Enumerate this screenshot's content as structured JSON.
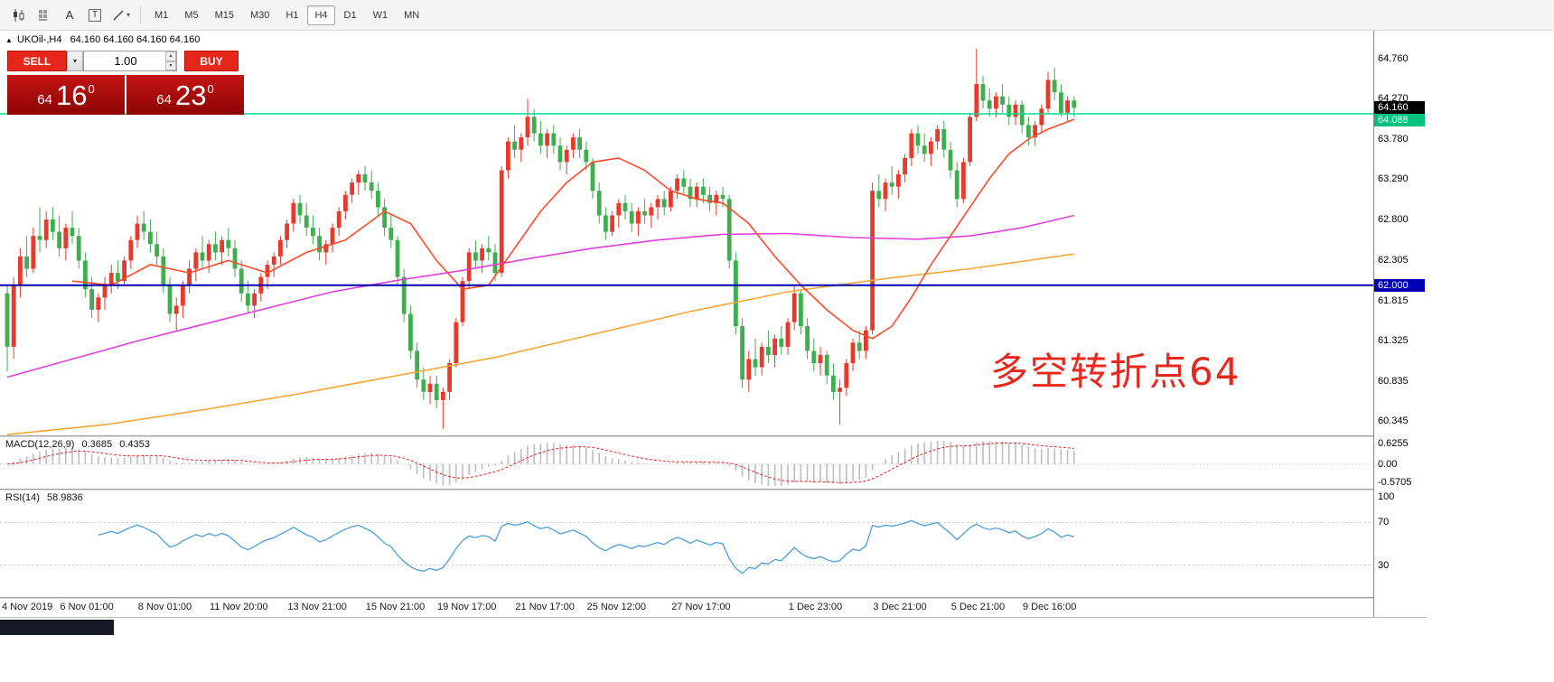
{
  "toolbar": {
    "tools": [
      "A",
      "T"
    ],
    "timeframes": [
      "M1",
      "M5",
      "M15",
      "M30",
      "H1",
      "H4",
      "D1",
      "W1",
      "MN"
    ],
    "active_timeframe": "H4"
  },
  "icons": {
    "symbol_arrow": "▲",
    "dropdown_caret": "▾",
    "spinner_up": "▴",
    "spinner_down": "▾"
  },
  "chart": {
    "symbol": "UKOil-,H4",
    "ohlc": "64.160 64.160 64.160 64.160"
  },
  "trade_panel": {
    "sell_label": "SELL",
    "buy_label": "BUY",
    "volume": "1.00",
    "bid": {
      "group": "64",
      "big": "16",
      "sup": "0"
    },
    "ask": {
      "group": "64",
      "big": "23",
      "sup": "0"
    }
  },
  "annotation": {
    "text": "多空转折点64",
    "color": "#e8281e"
  },
  "chart_data": {
    "type": "candlestick",
    "symbol": "UKOil-",
    "timeframe": "H4",
    "price_range": [
      60.17,
      65.1
    ],
    "price_ticks": [
      64.76,
      64.27,
      63.78,
      63.29,
      62.8,
      62.305,
      61.815,
      61.325,
      60.835,
      60.345
    ],
    "badges": [
      {
        "price": 64.16,
        "label": "64.160",
        "bg": "#000000",
        "fg": "#ffffff"
      },
      {
        "price": 64.088,
        "label": "64.088",
        "bg": "#00c17e",
        "fg": "#ffffff"
      },
      {
        "price": 62.0,
        "label": "62.000",
        "bg": "#0000b4",
        "fg": "#ffffff"
      }
    ],
    "colors": {
      "up": "#e8392b",
      "down": "#3fae4f"
    },
    "hlines": [
      {
        "price": 62.0,
        "color": "#0000b4",
        "width": 2,
        "name": "support-line-62"
      },
      {
        "price": 64.088,
        "color": "#00dd90",
        "width": 1.6,
        "name": "green-level-line"
      }
    ],
    "moving_averages": [
      {
        "name": "slow-ma-orange",
        "color": "#f5a83c",
        "points": [
          [
            0,
            60.18
          ],
          [
            15,
            60.3
          ],
          [
            30,
            60.48
          ],
          [
            45,
            60.68
          ],
          [
            60,
            60.9
          ],
          [
            75,
            61.12
          ],
          [
            90,
            61.4
          ],
          [
            105,
            61.68
          ],
          [
            120,
            61.92
          ],
          [
            135,
            62.08
          ],
          [
            148,
            62.2
          ],
          [
            164,
            62.38
          ]
        ]
      },
      {
        "name": "slow-ma-magenta",
        "color": "#e040d8",
        "points": [
          [
            0,
            60.88
          ],
          [
            10,
            61.1
          ],
          [
            20,
            61.32
          ],
          [
            30,
            61.52
          ],
          [
            40,
            61.72
          ],
          [
            50,
            61.92
          ],
          [
            60,
            62.06
          ],
          [
            70,
            62.18
          ],
          [
            80,
            62.32
          ],
          [
            90,
            62.45
          ],
          [
            100,
            62.55
          ],
          [
            110,
            62.62
          ],
          [
            120,
            62.63
          ],
          [
            130,
            62.58
          ],
          [
            140,
            62.56
          ],
          [
            148,
            62.6
          ],
          [
            156,
            62.7
          ],
          [
            164,
            62.85
          ]
        ]
      },
      {
        "name": "fast-ma-red",
        "color": "#ff4a2a",
        "points": [
          [
            10,
            62.05
          ],
          [
            16,
            62.0
          ],
          [
            22,
            62.25
          ],
          [
            28,
            62.15
          ],
          [
            34,
            62.3
          ],
          [
            40,
            62.15
          ],
          [
            46,
            62.4
          ],
          [
            52,
            62.55
          ],
          [
            58,
            62.9
          ],
          [
            62,
            62.75
          ],
          [
            66,
            62.3
          ],
          [
            70,
            61.95
          ],
          [
            74,
            62.0
          ],
          [
            78,
            62.45
          ],
          [
            82,
            62.9
          ],
          [
            86,
            63.25
          ],
          [
            90,
            63.5
          ],
          [
            94,
            63.55
          ],
          [
            98,
            63.4
          ],
          [
            102,
            63.15
          ],
          [
            106,
            63.05
          ],
          [
            110,
            63.0
          ],
          [
            114,
            62.75
          ],
          [
            118,
            62.35
          ],
          [
            122,
            62.0
          ],
          [
            126,
            61.7
          ],
          [
            130,
            61.45
          ],
          [
            133,
            61.35
          ],
          [
            136,
            61.5
          ],
          [
            139,
            61.85
          ],
          [
            142,
            62.25
          ],
          [
            145,
            62.6
          ],
          [
            148,
            62.95
          ],
          [
            151,
            63.3
          ],
          [
            154,
            63.6
          ],
          [
            157,
            63.78
          ],
          [
            160,
            63.9
          ],
          [
            164,
            64.02
          ]
        ]
      }
    ],
    "candles": [
      [
        61.9,
        62.0,
        60.95,
        61.25
      ],
      [
        61.25,
        62.1,
        61.1,
        62.0
      ],
      [
        62.0,
        62.45,
        61.85,
        62.35
      ],
      [
        62.35,
        62.6,
        62.1,
        62.2
      ],
      [
        62.2,
        62.7,
        62.15,
        62.6
      ],
      [
        62.6,
        62.95,
        62.4,
        62.55
      ],
      [
        62.55,
        62.9,
        62.45,
        62.8
      ],
      [
        62.8,
        62.95,
        62.55,
        62.65
      ],
      [
        62.65,
        62.85,
        62.35,
        62.45
      ],
      [
        62.45,
        62.75,
        62.3,
        62.7
      ],
      [
        62.7,
        62.9,
        62.5,
        62.6
      ],
      [
        62.6,
        62.7,
        62.2,
        62.3
      ],
      [
        62.3,
        62.4,
        61.85,
        61.95
      ],
      [
        61.95,
        62.1,
        61.6,
        61.7
      ],
      [
        61.7,
        61.9,
        61.55,
        61.85
      ],
      [
        61.85,
        62.1,
        61.7,
        62.0
      ],
      [
        62.0,
        62.25,
        61.9,
        62.15
      ],
      [
        62.15,
        62.3,
        61.95,
        62.05
      ],
      [
        62.05,
        62.35,
        62.0,
        62.3
      ],
      [
        62.3,
        62.6,
        62.2,
        62.55
      ],
      [
        62.55,
        62.85,
        62.45,
        62.75
      ],
      [
        62.75,
        62.9,
        62.55,
        62.65
      ],
      [
        62.65,
        62.8,
        62.4,
        62.5
      ],
      [
        62.5,
        62.65,
        62.25,
        62.35
      ],
      [
        62.35,
        62.45,
        61.9,
        62.0
      ],
      [
        62.0,
        62.1,
        61.55,
        61.65
      ],
      [
        61.65,
        61.85,
        61.45,
        61.75
      ],
      [
        61.75,
        62.05,
        61.6,
        62.0
      ],
      [
        62.0,
        62.3,
        61.9,
        62.2
      ],
      [
        62.2,
        62.45,
        62.05,
        62.4
      ],
      [
        62.4,
        62.6,
        62.2,
        62.3
      ],
      [
        62.3,
        62.55,
        62.15,
        62.5
      ],
      [
        62.5,
        62.65,
        62.3,
        62.4
      ],
      [
        62.4,
        62.6,
        62.25,
        62.55
      ],
      [
        62.55,
        62.7,
        62.35,
        62.45
      ],
      [
        62.45,
        62.55,
        62.1,
        62.2
      ],
      [
        62.2,
        62.3,
        61.8,
        61.9
      ],
      [
        61.9,
        62.05,
        61.65,
        61.75
      ],
      [
        61.75,
        61.95,
        61.6,
        61.9
      ],
      [
        61.9,
        62.15,
        61.8,
        62.1
      ],
      [
        62.1,
        62.3,
        61.95,
        62.25
      ],
      [
        62.25,
        62.4,
        62.1,
        62.35
      ],
      [
        62.35,
        62.6,
        62.25,
        62.55
      ],
      [
        62.55,
        62.8,
        62.45,
        62.75
      ],
      [
        62.75,
        63.05,
        62.65,
        63.0
      ],
      [
        63.0,
        63.1,
        62.75,
        62.85
      ],
      [
        62.85,
        63.0,
        62.6,
        62.7
      ],
      [
        62.7,
        62.85,
        62.5,
        62.6
      ],
      [
        62.6,
        62.7,
        62.3,
        62.4
      ],
      [
        62.4,
        62.55,
        62.25,
        62.5
      ],
      [
        62.5,
        62.75,
        62.4,
        62.7
      ],
      [
        62.7,
        62.95,
        62.6,
        62.9
      ],
      [
        62.9,
        63.15,
        62.8,
        63.1
      ],
      [
        63.1,
        63.3,
        63.0,
        63.25
      ],
      [
        63.25,
        63.4,
        63.1,
        63.35
      ],
      [
        63.35,
        63.45,
        63.15,
        63.25
      ],
      [
        63.25,
        63.4,
        63.05,
        63.15
      ],
      [
        63.15,
        63.25,
        62.85,
        62.95
      ],
      [
        62.95,
        63.05,
        62.6,
        62.7
      ],
      [
        62.7,
        62.85,
        62.45,
        62.55
      ],
      [
        62.55,
        62.6,
        62.0,
        62.1
      ],
      [
        62.1,
        62.2,
        61.55,
        61.65
      ],
      [
        61.65,
        61.75,
        61.1,
        61.2
      ],
      [
        61.2,
        61.3,
        60.75,
        60.85
      ],
      [
        60.85,
        61.0,
        60.6,
        60.7
      ],
      [
        60.7,
        60.9,
        60.55,
        60.8
      ],
      [
        60.8,
        60.9,
        60.5,
        60.6
      ],
      [
        60.6,
        60.75,
        60.25,
        60.7
      ],
      [
        60.7,
        61.1,
        60.6,
        61.05
      ],
      [
        61.05,
        61.6,
        61.0,
        61.55
      ],
      [
        61.55,
        62.1,
        61.5,
        62.05
      ],
      [
        62.05,
        62.45,
        61.95,
        62.4
      ],
      [
        62.4,
        62.55,
        62.2,
        62.3
      ],
      [
        62.3,
        62.5,
        62.15,
        62.45
      ],
      [
        62.45,
        62.6,
        62.3,
        62.4
      ],
      [
        62.4,
        62.5,
        62.05,
        62.15
      ],
      [
        62.15,
        63.45,
        62.1,
        63.4
      ],
      [
        63.4,
        63.8,
        63.3,
        63.75
      ],
      [
        63.75,
        63.95,
        63.55,
        63.65
      ],
      [
        63.65,
        63.85,
        63.5,
        63.8
      ],
      [
        63.8,
        64.27,
        63.7,
        64.05
      ],
      [
        64.05,
        64.15,
        63.75,
        63.85
      ],
      [
        63.85,
        64.0,
        63.6,
        63.7
      ],
      [
        63.7,
        63.9,
        63.55,
        63.85
      ],
      [
        63.85,
        63.95,
        63.6,
        63.7
      ],
      [
        63.7,
        63.8,
        63.4,
        63.5
      ],
      [
        63.5,
        63.7,
        63.35,
        63.65
      ],
      [
        63.65,
        63.85,
        63.55,
        63.8
      ],
      [
        63.8,
        63.9,
        63.55,
        63.65
      ],
      [
        63.65,
        63.75,
        63.4,
        63.5
      ],
      [
        63.5,
        63.55,
        63.05,
        63.15
      ],
      [
        63.15,
        63.25,
        62.75,
        62.85
      ],
      [
        62.85,
        62.95,
        62.55,
        62.65
      ],
      [
        62.65,
        62.9,
        62.6,
        62.85
      ],
      [
        62.85,
        63.05,
        62.7,
        63.0
      ],
      [
        63.0,
        63.1,
        62.8,
        62.9
      ],
      [
        62.9,
        63.0,
        62.65,
        62.75
      ],
      [
        62.75,
        62.95,
        62.6,
        62.9
      ],
      [
        62.9,
        63.05,
        62.75,
        62.85
      ],
      [
        62.85,
        63.0,
        62.7,
        62.95
      ],
      [
        62.95,
        63.1,
        62.8,
        63.05
      ],
      [
        63.05,
        63.15,
        62.85,
        62.95
      ],
      [
        62.95,
        63.2,
        62.9,
        63.15
      ],
      [
        63.15,
        63.35,
        63.05,
        63.3
      ],
      [
        63.3,
        63.4,
        63.1,
        63.2
      ],
      [
        63.2,
        63.3,
        62.95,
        63.05
      ],
      [
        63.05,
        63.25,
        62.95,
        63.2
      ],
      [
        63.2,
        63.3,
        63.0,
        63.1
      ],
      [
        63.1,
        63.2,
        62.9,
        63.0
      ],
      [
        63.0,
        63.15,
        62.85,
        63.1
      ],
      [
        63.1,
        63.2,
        62.95,
        63.05
      ],
      [
        63.05,
        63.1,
        62.2,
        62.3
      ],
      [
        62.3,
        62.4,
        61.4,
        61.5
      ],
      [
        61.5,
        61.6,
        60.75,
        60.85
      ],
      [
        60.85,
        61.2,
        60.7,
        61.1
      ],
      [
        61.1,
        61.35,
        60.9,
        61.0
      ],
      [
        61.0,
        61.3,
        60.9,
        61.25
      ],
      [
        61.25,
        61.45,
        61.05,
        61.15
      ],
      [
        61.15,
        61.4,
        61.0,
        61.35
      ],
      [
        61.35,
        61.5,
        61.15,
        61.25
      ],
      [
        61.25,
        61.6,
        61.15,
        61.55
      ],
      [
        61.55,
        62.0,
        61.45,
        61.9
      ],
      [
        61.9,
        61.95,
        61.4,
        61.5
      ],
      [
        61.5,
        61.6,
        61.1,
        61.2
      ],
      [
        61.2,
        61.35,
        60.95,
        61.05
      ],
      [
        61.05,
        61.25,
        60.9,
        61.15
      ],
      [
        61.15,
        61.2,
        60.8,
        60.9
      ],
      [
        60.9,
        61.05,
        60.6,
        60.7
      ],
      [
        60.7,
        60.85,
        60.3,
        60.75
      ],
      [
        60.75,
        61.1,
        60.65,
        61.05
      ],
      [
        61.05,
        61.35,
        60.95,
        61.3
      ],
      [
        61.3,
        61.45,
        61.1,
        61.2
      ],
      [
        61.2,
        61.5,
        61.1,
        61.45
      ],
      [
        61.45,
        63.25,
        61.4,
        63.15
      ],
      [
        63.15,
        63.35,
        62.95,
        63.05
      ],
      [
        63.05,
        63.3,
        62.9,
        63.25
      ],
      [
        63.25,
        63.45,
        63.1,
        63.2
      ],
      [
        63.2,
        63.4,
        63.05,
        63.35
      ],
      [
        63.35,
        63.6,
        63.25,
        63.55
      ],
      [
        63.55,
        63.9,
        63.45,
        63.85
      ],
      [
        63.85,
        63.95,
        63.6,
        63.7
      ],
      [
        63.7,
        63.85,
        63.5,
        63.6
      ],
      [
        63.6,
        63.8,
        63.45,
        63.75
      ],
      [
        63.75,
        63.95,
        63.65,
        63.9
      ],
      [
        63.9,
        64.0,
        63.55,
        63.65
      ],
      [
        63.65,
        63.75,
        63.3,
        63.4
      ],
      [
        63.4,
        63.5,
        62.95,
        63.05
      ],
      [
        63.05,
        63.55,
        63.0,
        63.5
      ],
      [
        63.5,
        64.1,
        63.45,
        64.05
      ],
      [
        64.05,
        64.88,
        64.0,
        64.45
      ],
      [
        64.45,
        64.55,
        64.15,
        64.25
      ],
      [
        64.25,
        64.4,
        64.05,
        64.15
      ],
      [
        64.15,
        64.35,
        64.05,
        64.3
      ],
      [
        64.3,
        64.45,
        64.1,
        64.2
      ],
      [
        64.2,
        64.3,
        63.95,
        64.05
      ],
      [
        64.05,
        64.25,
        63.95,
        64.2
      ],
      [
        64.2,
        64.25,
        63.85,
        63.95
      ],
      [
        63.95,
        64.05,
        63.7,
        63.8
      ],
      [
        63.8,
        64.0,
        63.7,
        63.95
      ],
      [
        63.95,
        64.2,
        63.85,
        64.15
      ],
      [
        64.15,
        64.6,
        64.1,
        64.5
      ],
      [
        64.5,
        64.65,
        64.25,
        64.35
      ],
      [
        64.35,
        64.45,
        64.05,
        64.1
      ],
      [
        64.1,
        64.3,
        64.0,
        64.25
      ],
      [
        64.25,
        64.3,
        64.05,
        64.16
      ]
    ],
    "time_labels": [
      {
        "i": 0,
        "text": "4 Nov 2019"
      },
      {
        "i": 12,
        "text": "6 Nov 01:00"
      },
      {
        "i": 24,
        "text": "8 Nov 01:00"
      },
      {
        "i": 35,
        "text": "11 Nov 20:00"
      },
      {
        "i": 47,
        "text": "13 Nov 21:00"
      },
      {
        "i": 59,
        "text": "15 Nov 21:00"
      },
      {
        "i": 70,
        "text": "19 Nov 17:00"
      },
      {
        "i": 82,
        "text": "21 Nov 17:00"
      },
      {
        "i": 93,
        "text": "25 Nov 12:00"
      },
      {
        "i": 106,
        "text": "27 Nov 17:00"
      },
      {
        "i": 124,
        "text": "1 Dec 23:00"
      },
      {
        "i": 137,
        "text": "3 Dec 21:00"
      },
      {
        "i": 149,
        "text": "5 Dec 21:00"
      },
      {
        "i": 160,
        "text": "9 Dec 16:00"
      }
    ],
    "macd": {
      "name": "MACD(12,26,9)",
      "value1": "0.3685",
      "value2": "0.4353",
      "range": [
        -0.5705,
        0.6255
      ],
      "axis": [
        "0.6255",
        "0.00",
        "-0.5705"
      ],
      "hist_color": "#bdbdbd",
      "signal_color": "#e42222"
    },
    "rsi": {
      "name": "RSI(14)",
      "value": "58.9836",
      "axis": [
        "100",
        "70",
        "30"
      ],
      "levels": [
        70,
        30
      ],
      "color": "#4a9fdc"
    }
  }
}
